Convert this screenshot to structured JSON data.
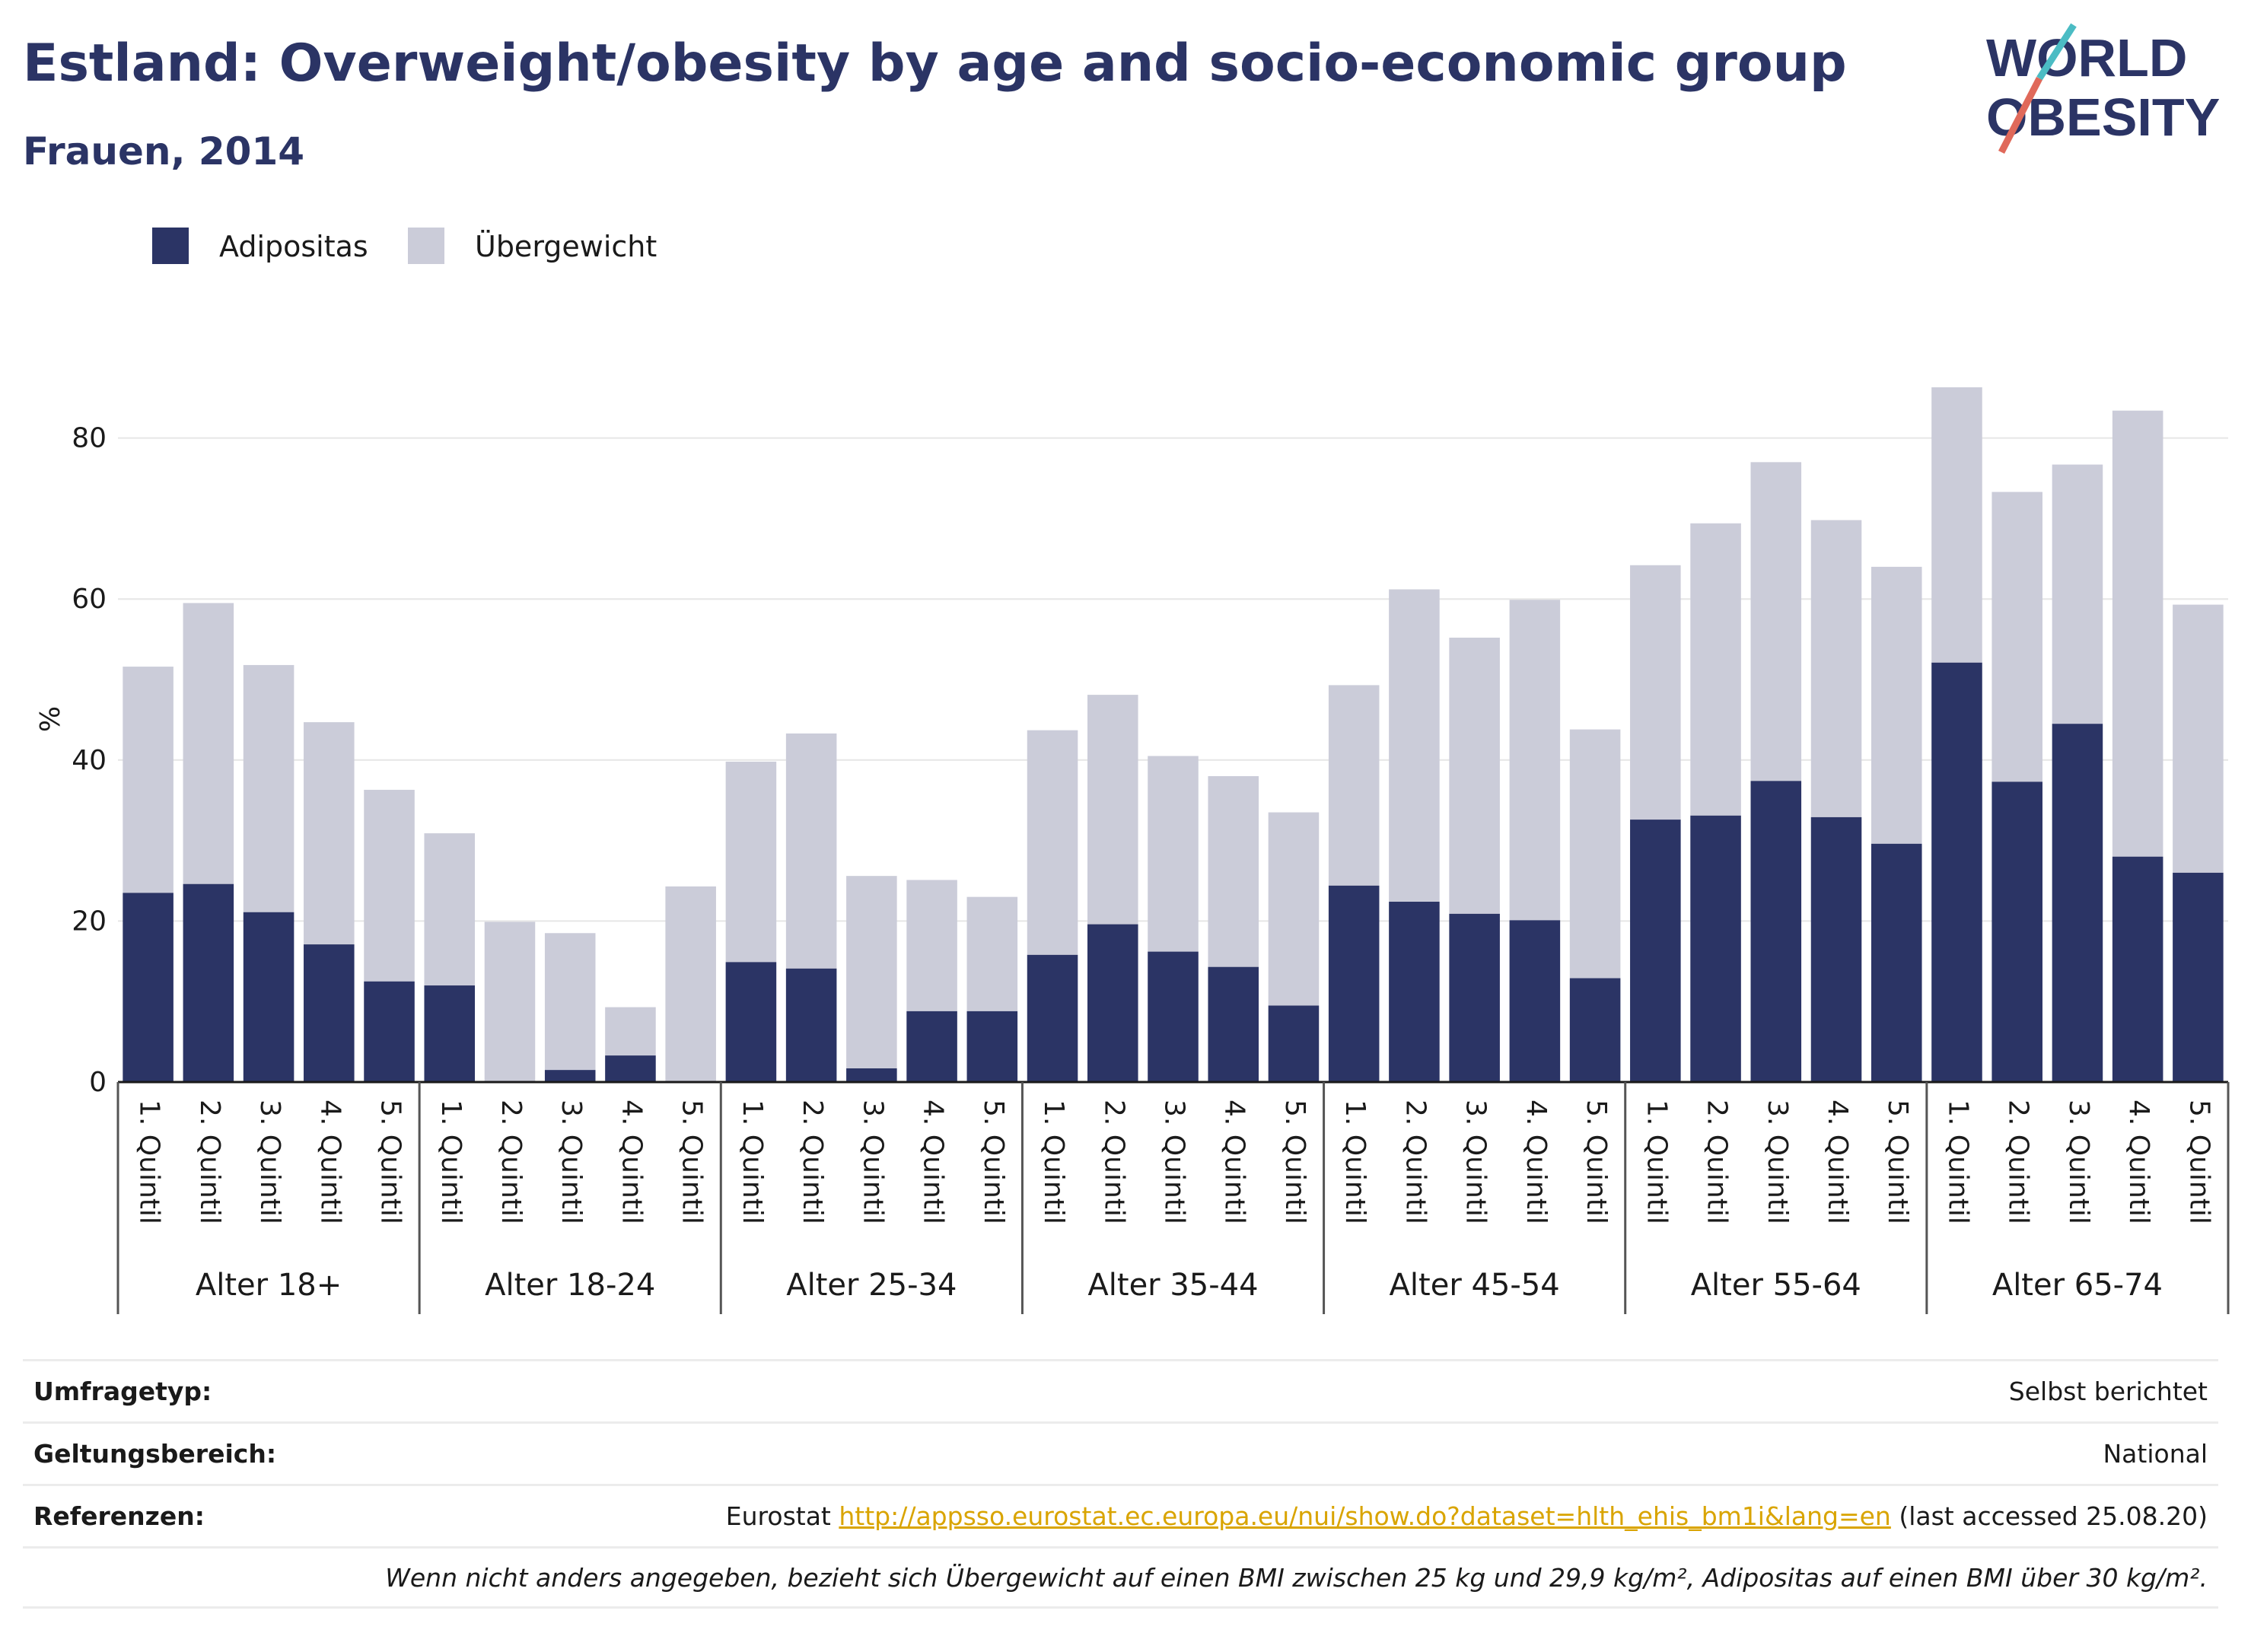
{
  "title": "Estland: Overweight/obesity by age and socio-economic group",
  "subtitle": "Frauen, 2014",
  "logo": {
    "line1": "WORLD",
    "line2": "OBESITY"
  },
  "colors": {
    "obesity": "#2b3465",
    "overweight": "#cbccd9",
    "text": "#1a1a1a",
    "grid": "#e6e6e6",
    "accent_teal": "#4bbcc4",
    "accent_red": "#e0695a"
  },
  "chart_data": {
    "type": "bar",
    "stacked": true,
    "ylabel": "%",
    "ylim": [
      0,
      90
    ],
    "yticks": [
      0,
      20,
      40,
      60,
      80
    ],
    "grid": true,
    "legend": {
      "placement": "top-left",
      "entries": [
        "Adipositas",
        "Übergewicht"
      ]
    },
    "groups": [
      "Alter 18+",
      "Alter 18-24",
      "Alter 25-34",
      "Alter 35-44",
      "Alter 45-54",
      "Alter 55-64",
      "Alter 65-74"
    ],
    "categories": [
      "1. Quintil",
      "2. Quintil",
      "3. Quintil",
      "4. Quintil",
      "5. Quintil"
    ],
    "series": [
      {
        "name": "Adipositas",
        "values": [
          [
            23.5,
            24.6,
            21.1,
            17.1,
            12.5
          ],
          [
            12.0,
            0,
            1.5,
            3.3,
            0
          ],
          [
            14.9,
            14.1,
            1.7,
            8.8,
            8.8
          ],
          [
            15.8,
            19.6,
            16.2,
            14.3,
            9.5
          ],
          [
            24.4,
            22.4,
            20.9,
            20.1,
            12.9
          ],
          [
            32.6,
            33.1,
            37.4,
            32.9,
            29.6
          ],
          [
            52.1,
            37.3,
            44.5,
            28.0,
            26.0
          ]
        ]
      },
      {
        "name": "Übergewicht",
        "values": [
          [
            28.1,
            34.9,
            30.7,
            27.6,
            23.8
          ],
          [
            18.9,
            19.9,
            17.0,
            6.0,
            24.3
          ],
          [
            24.9,
            29.2,
            23.9,
            16.3,
            14.2
          ],
          [
            27.9,
            28.5,
            24.3,
            23.7,
            24.0
          ],
          [
            24.9,
            38.8,
            34.3,
            39.8,
            30.9
          ],
          [
            31.6,
            36.3,
            39.6,
            36.9,
            34.4
          ],
          [
            34.2,
            36.0,
            32.2,
            55.4,
            33.3
          ]
        ]
      }
    ]
  },
  "footer": {
    "rows": [
      {
        "key": "Umfragetyp:",
        "value": "Selbst berichtet"
      },
      {
        "key": "Geltungsbereich:",
        "value": "National"
      }
    ],
    "references": {
      "key": "Referenzen:",
      "prefix": "Eurostat",
      "link": "http://appsso.eurostat.ec.europa.eu/nui/show.do?dataset=hlth_ehis_bm1i&lang=en",
      "suffix": "(last accessed 25.08.20)"
    },
    "note": "Wenn nicht anders angegeben, bezieht sich Übergewicht auf einen BMI zwischen 25 kg und 29,9 kg/m², Adipositas auf einen BMI über 30 kg/m²."
  }
}
